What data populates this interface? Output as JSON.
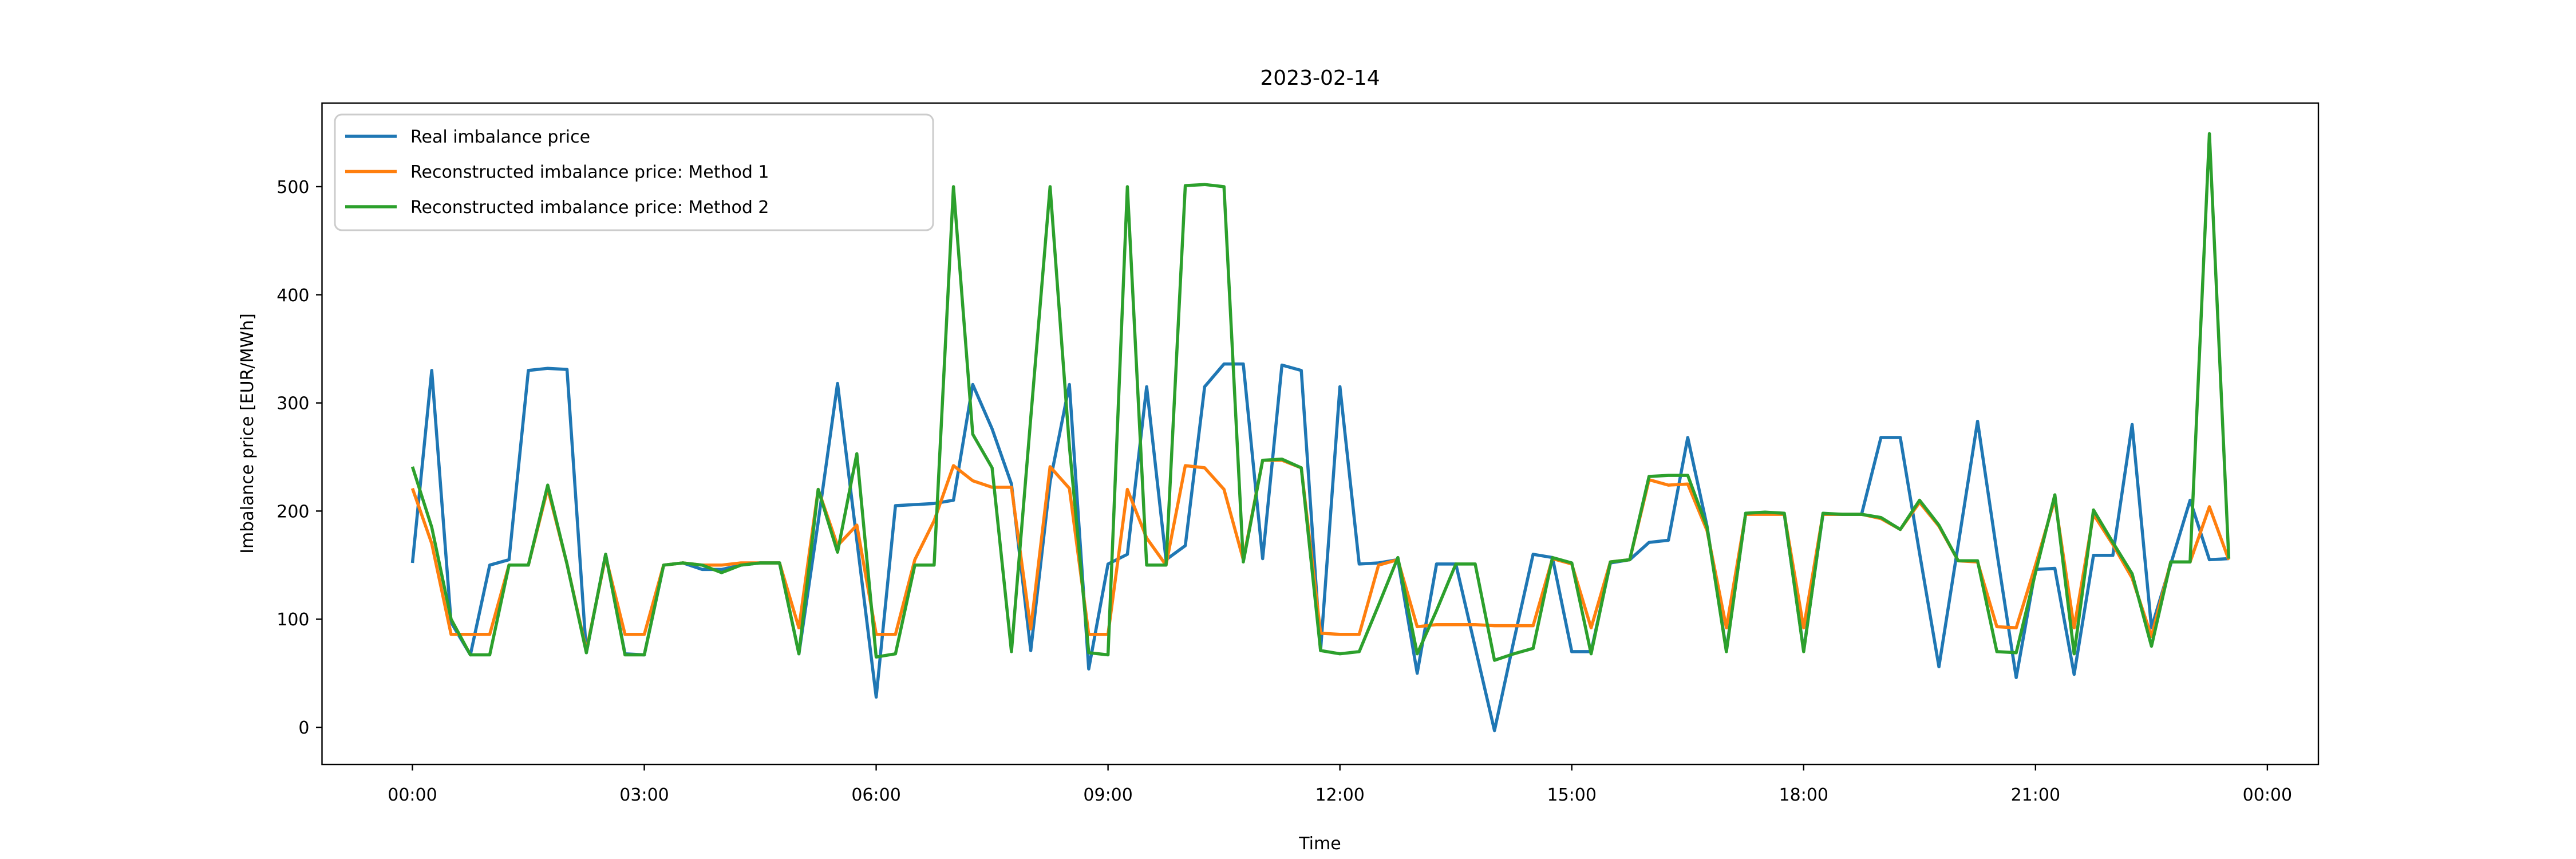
{
  "figure": {
    "background": "#ffffff",
    "plot_background": "#ffffff",
    "spine_color": "#000000",
    "legend_border_color": "#cccccc"
  },
  "chart_data": {
    "type": "line",
    "title": "2023-02-14",
    "xlabel": "Time",
    "ylabel": "Imbalance price [EUR/MWh]",
    "grid": false,
    "legend_position": "upper-left",
    "x_start_hour": 0.0,
    "x_step_hours": 0.25,
    "x_tick_hours": [
      0,
      3,
      6,
      9,
      12,
      15,
      18,
      21,
      24
    ],
    "x_tick_labels": [
      "00:00",
      "03:00",
      "06:00",
      "09:00",
      "12:00",
      "15:00",
      "18:00",
      "21:00",
      "00:00"
    ],
    "y_tick_values": [
      0,
      100,
      200,
      300,
      400,
      500
    ],
    "xlim_hours": [
      -1.17,
      24.66
    ],
    "ylim": [
      -34.4,
      577.3
    ],
    "series": [
      {
        "name": "Real imbalance price",
        "color": "#1f77b4",
        "values": [
          152,
          330,
          97,
          67,
          150,
          155,
          330,
          332,
          331,
          69,
          160,
          68,
          67,
          150,
          152,
          146,
          146,
          150,
          152,
          152,
          68,
          190,
          318,
          173,
          28,
          205,
          206,
          207,
          210,
          317,
          276,
          225,
          71,
          227,
          317,
          54,
          151,
          160,
          315,
          155,
          168,
          315,
          336,
          336,
          156,
          335,
          330,
          71,
          315,
          151,
          152,
          155,
          50,
          151,
          151,
          74,
          -3,
          80,
          160,
          157,
          70,
          70,
          152,
          155,
          171,
          173,
          268,
          186,
          71,
          198,
          198,
          197,
          71,
          197,
          197,
          197,
          268,
          268,
          161,
          56,
          169,
          283,
          162,
          46,
          146,
          147,
          49,
          159,
          159,
          280,
          92,
          151,
          210,
          155,
          156
        ]
      },
      {
        "name": "Reconstructed imbalance price: Method 1",
        "color": "#ff7f0e",
        "values": [
          221,
          170,
          86,
          86,
          86,
          150,
          150,
          221,
          151,
          71,
          158,
          86,
          86,
          150,
          152,
          150,
          150,
          152,
          152,
          152,
          92,
          220,
          168,
          187,
          86,
          86,
          155,
          191,
          242,
          228,
          222,
          222,
          91,
          241,
          221,
          86,
          86,
          220,
          175,
          150,
          242,
          240,
          220,
          155,
          247,
          247,
          240,
          87,
          86,
          86,
          150,
          155,
          93,
          95,
          95,
          95,
          94,
          94,
          94,
          156,
          151,
          92,
          153,
          155,
          229,
          224,
          225,
          182,
          92,
          197,
          197,
          197,
          92,
          197,
          197,
          197,
          193,
          183,
          208,
          186,
          154,
          153,
          93,
          92,
          150,
          211,
          92,
          197,
          169,
          138,
          84,
          153,
          153,
          204,
          155
        ]
      },
      {
        "name": "Reconstructed imbalance price: Method 2",
        "color": "#2ca02c",
        "values": [
          241,
          185,
          100,
          67,
          67,
          150,
          150,
          224,
          151,
          69,
          160,
          67,
          67,
          150,
          152,
          150,
          143,
          150,
          152,
          152,
          68,
          220,
          162,
          253,
          65,
          68,
          150,
          150,
          500,
          271,
          240,
          70,
          286,
          500,
          260,
          69,
          67,
          500,
          150,
          150,
          501,
          502,
          500,
          153,
          247,
          248,
          240,
          71,
          68,
          70,
          113,
          157,
          68,
          108,
          151,
          151,
          62,
          68,
          73,
          157,
          152,
          68,
          153,
          155,
          232,
          233,
          233,
          185,
          70,
          198,
          199,
          198,
          70,
          198,
          197,
          197,
          194,
          183,
          210,
          187,
          154,
          154,
          70,
          69,
          143,
          215,
          68,
          201,
          171,
          142,
          75,
          153,
          153,
          549,
          156
        ]
      }
    ]
  }
}
